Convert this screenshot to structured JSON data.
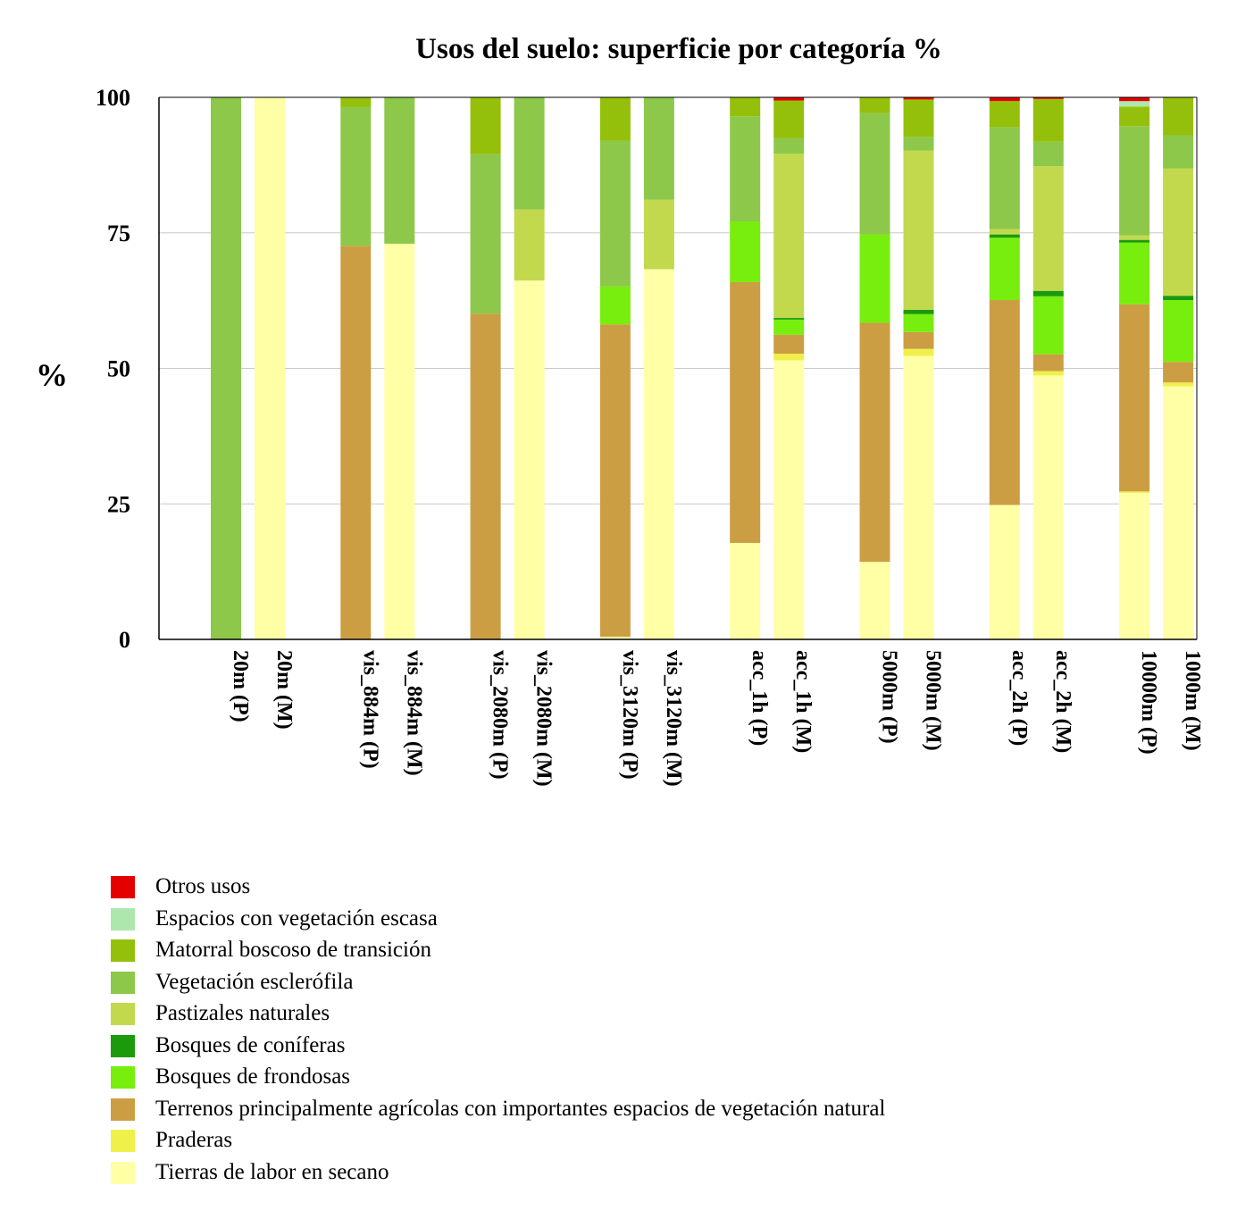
{
  "chart_data": {
    "type": "bar",
    "stacked": true,
    "title": "Usos del suelo: superficie por categoría %",
    "ylabel": "%",
    "xlabel": "",
    "ylim": [
      0,
      100
    ],
    "yticks": [
      "0",
      "25",
      "50",
      "75",
      "100"
    ],
    "grid": true,
    "legend_position": "bottom",
    "categories": [
      "20m (P)",
      "20m (M)",
      "vis_884m (P)",
      "vis_884m (M)",
      "vis_2080m (P)",
      "vis_2080m (M)",
      "vis_3120m (P)",
      "vis_3120m (M)",
      "acc_1h (P)",
      "acc_1h (M)",
      "5000m (P)",
      "5000m (M)",
      "acc_2h (P)",
      "acc_2h (M)",
      "10000m (P)",
      "1000m (M)"
    ],
    "series": [
      {
        "name": "Tierras de labor en secano",
        "color": "#FFFFA6",
        "values": [
          0,
          100,
          0,
          73,
          0,
          66.2,
          0.5,
          68.3,
          17.8,
          51.5,
          14.3,
          52.3,
          24.8,
          48.7,
          27,
          46.7
        ]
      },
      {
        "name": "Praderas",
        "color": "#F0F04A",
        "values": [
          0,
          0,
          0,
          0,
          0,
          0,
          0,
          0,
          0,
          1.2,
          0,
          1.3,
          0,
          0.8,
          0.3,
          0.7
        ]
      },
      {
        "name": "Terrenos principalmente agrícolas con importantes espacios de vegetación natural",
        "color": "#CC9E44",
        "values": [
          0,
          0,
          72.6,
          0,
          60.1,
          0,
          57.6,
          0,
          48.1,
          3.5,
          44.1,
          3.1,
          37.8,
          3.1,
          34.5,
          3.8
        ]
      },
      {
        "name": "Bosques de frondosas",
        "color": "#78EE0E",
        "values": [
          0,
          0,
          0,
          0,
          0,
          0,
          7,
          0,
          11.2,
          2.8,
          16.3,
          3.3,
          11.5,
          10.7,
          11.4,
          11.4
        ]
      },
      {
        "name": "Bosques de coníferas",
        "color": "#1B9B0C",
        "values": [
          0,
          0,
          0,
          0,
          0,
          0,
          0,
          0,
          0,
          0.3,
          0,
          0.8,
          0.6,
          1,
          0.5,
          0.8
        ]
      },
      {
        "name": "Pastizales naturales",
        "color": "#C2D94E",
        "values": [
          0,
          0,
          0,
          0,
          0,
          13.1,
          0,
          12.8,
          0,
          30.3,
          0,
          29.4,
          1,
          23,
          0.8,
          23.5
        ]
      },
      {
        "name": "Vegetación esclerófila",
        "color": "#8DC84A",
        "values": [
          100,
          0,
          25.6,
          27,
          29.4,
          20.7,
          26.9,
          18.9,
          19.4,
          2.9,
          22.4,
          2.5,
          18.8,
          4.5,
          20.2,
          6.1
        ]
      },
      {
        "name": "Matorral boscoso de transición",
        "color": "#94C00B",
        "values": [
          0,
          0,
          1.8,
          0,
          10.5,
          0,
          8,
          0,
          3.5,
          6.9,
          2.9,
          6.9,
          4.8,
          7.9,
          3.6,
          7
        ]
      },
      {
        "name": "Espacios con vegetación escasa",
        "color": "#ADE7AD",
        "values": [
          0,
          0,
          0,
          0,
          0,
          0,
          0,
          0,
          0,
          0,
          0,
          0,
          0,
          0,
          1,
          0
        ]
      },
      {
        "name": "Otros usos",
        "color": "#E40000",
        "values": [
          0,
          0,
          0,
          0,
          0,
          0,
          0,
          0,
          0,
          0.6,
          0,
          0.4,
          0.7,
          0.3,
          0.7,
          0
        ]
      }
    ]
  }
}
